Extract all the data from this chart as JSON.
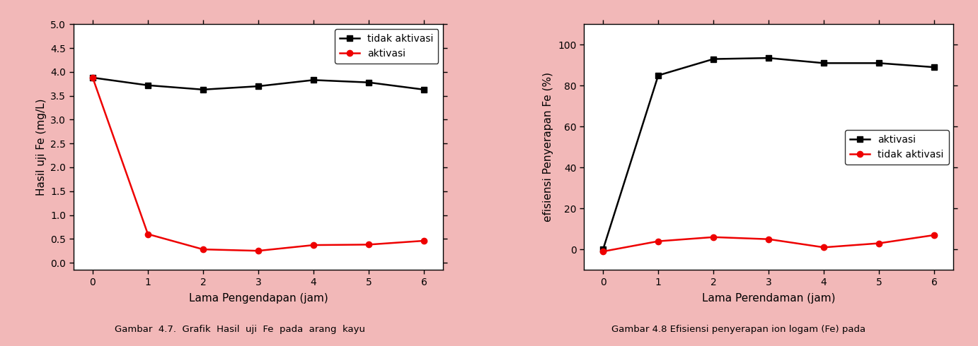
{
  "chart1": {
    "x": [
      0,
      1,
      2,
      3,
      4,
      5,
      6
    ],
    "tidak_aktivasi": [
      3.88,
      3.72,
      3.63,
      3.7,
      3.83,
      3.78,
      3.63
    ],
    "aktivasi": [
      3.88,
      0.6,
      0.28,
      0.25,
      0.37,
      0.38,
      0.46
    ],
    "xlabel": "Lama Pengendapan (jam)",
    "ylabel": "Hasil uji Fe (mg/L)",
    "legend1": "tidak aktivasi",
    "legend2": "aktivasi",
    "ylim": [
      -0.15,
      5.0
    ],
    "yticks": [
      0.0,
      0.5,
      1.0,
      1.5,
      2.0,
      2.5,
      3.0,
      3.5,
      4.0,
      4.5,
      5.0
    ],
    "xticks": [
      0,
      1,
      2,
      3,
      4,
      5,
      6
    ]
  },
  "chart2": {
    "x": [
      0,
      1,
      2,
      3,
      4,
      5,
      6
    ],
    "aktivasi": [
      0,
      85,
      93,
      93.5,
      91,
      91,
      89
    ],
    "tidak_aktivasi": [
      -1,
      4,
      6,
      5,
      1,
      3,
      7
    ],
    "xlabel": "Lama Perendaman (jam)",
    "ylabel": "efisiensi Penyerapan Fe (%)",
    "legend1": "aktivasi",
    "legend2": "tidak aktivasi",
    "ylim": [
      -10,
      110
    ],
    "yticks": [
      0,
      20,
      40,
      60,
      80,
      100
    ],
    "xticks": [
      0,
      1,
      2,
      3,
      4,
      5,
      6
    ]
  },
  "bg_color": "#f2b8b8",
  "plot_bg_color": "#ffffff",
  "line_color_black": "#000000",
  "line_color_red": "#ee0000",
  "marker_square": "s",
  "marker_circle": "o",
  "linewidth": 1.8,
  "markersize": 6,
  "caption1": "Gambar  4.7.  Grafik  Hasil  uji  Fe  pada  arang  kayu",
  "caption2": "Gambar 4.8 Efisiensi penyerapan ion logam (Fe) pada"
}
